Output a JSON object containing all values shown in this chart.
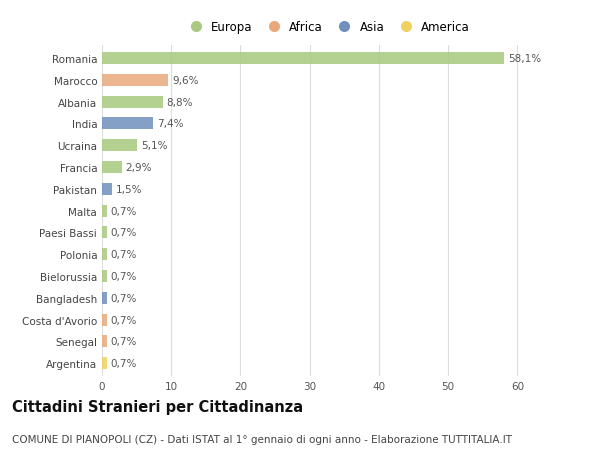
{
  "countries": [
    "Romania",
    "Marocco",
    "Albania",
    "India",
    "Ucraina",
    "Francia",
    "Pakistan",
    "Malta",
    "Paesi Bassi",
    "Polonia",
    "Bielorussia",
    "Bangladesh",
    "Costa d'Avorio",
    "Senegal",
    "Argentina"
  ],
  "values": [
    58.1,
    9.6,
    8.8,
    7.4,
    5.1,
    2.9,
    1.5,
    0.7,
    0.7,
    0.7,
    0.7,
    0.7,
    0.7,
    0.7,
    0.7
  ],
  "labels": [
    "58,1%",
    "9,6%",
    "8,8%",
    "7,4%",
    "5,1%",
    "2,9%",
    "1,5%",
    "0,7%",
    "0,7%",
    "0,7%",
    "0,7%",
    "0,7%",
    "0,7%",
    "0,7%",
    "0,7%"
  ],
  "continents": [
    "Europa",
    "Africa",
    "Europa",
    "Asia",
    "Europa",
    "Europa",
    "Asia",
    "Europa",
    "Europa",
    "Europa",
    "Europa",
    "Asia",
    "Africa",
    "Africa",
    "America"
  ],
  "continent_colors": {
    "Europa": "#a8c97f",
    "Africa": "#e8a87c",
    "Asia": "#6f8fbe",
    "America": "#f0d060"
  },
  "legend_order": [
    "Europa",
    "Africa",
    "Asia",
    "America"
  ],
  "background_color": "#ffffff",
  "grid_color": "#dddddd",
  "bar_height": 0.55,
  "xlim": [
    0,
    65
  ],
  "xticks": [
    0,
    10,
    20,
    30,
    40,
    50,
    60
  ],
  "title": "Cittadini Stranieri per Cittadinanza",
  "subtitle": "COMUNE DI PIANOPOLI (CZ) - Dati ISTAT al 1° gennaio di ogni anno - Elaborazione TUTTITALIA.IT",
  "title_fontsize": 10.5,
  "subtitle_fontsize": 7.5,
  "tick_fontsize": 7.5,
  "label_fontsize": 7.5,
  "legend_fontsize": 8.5
}
